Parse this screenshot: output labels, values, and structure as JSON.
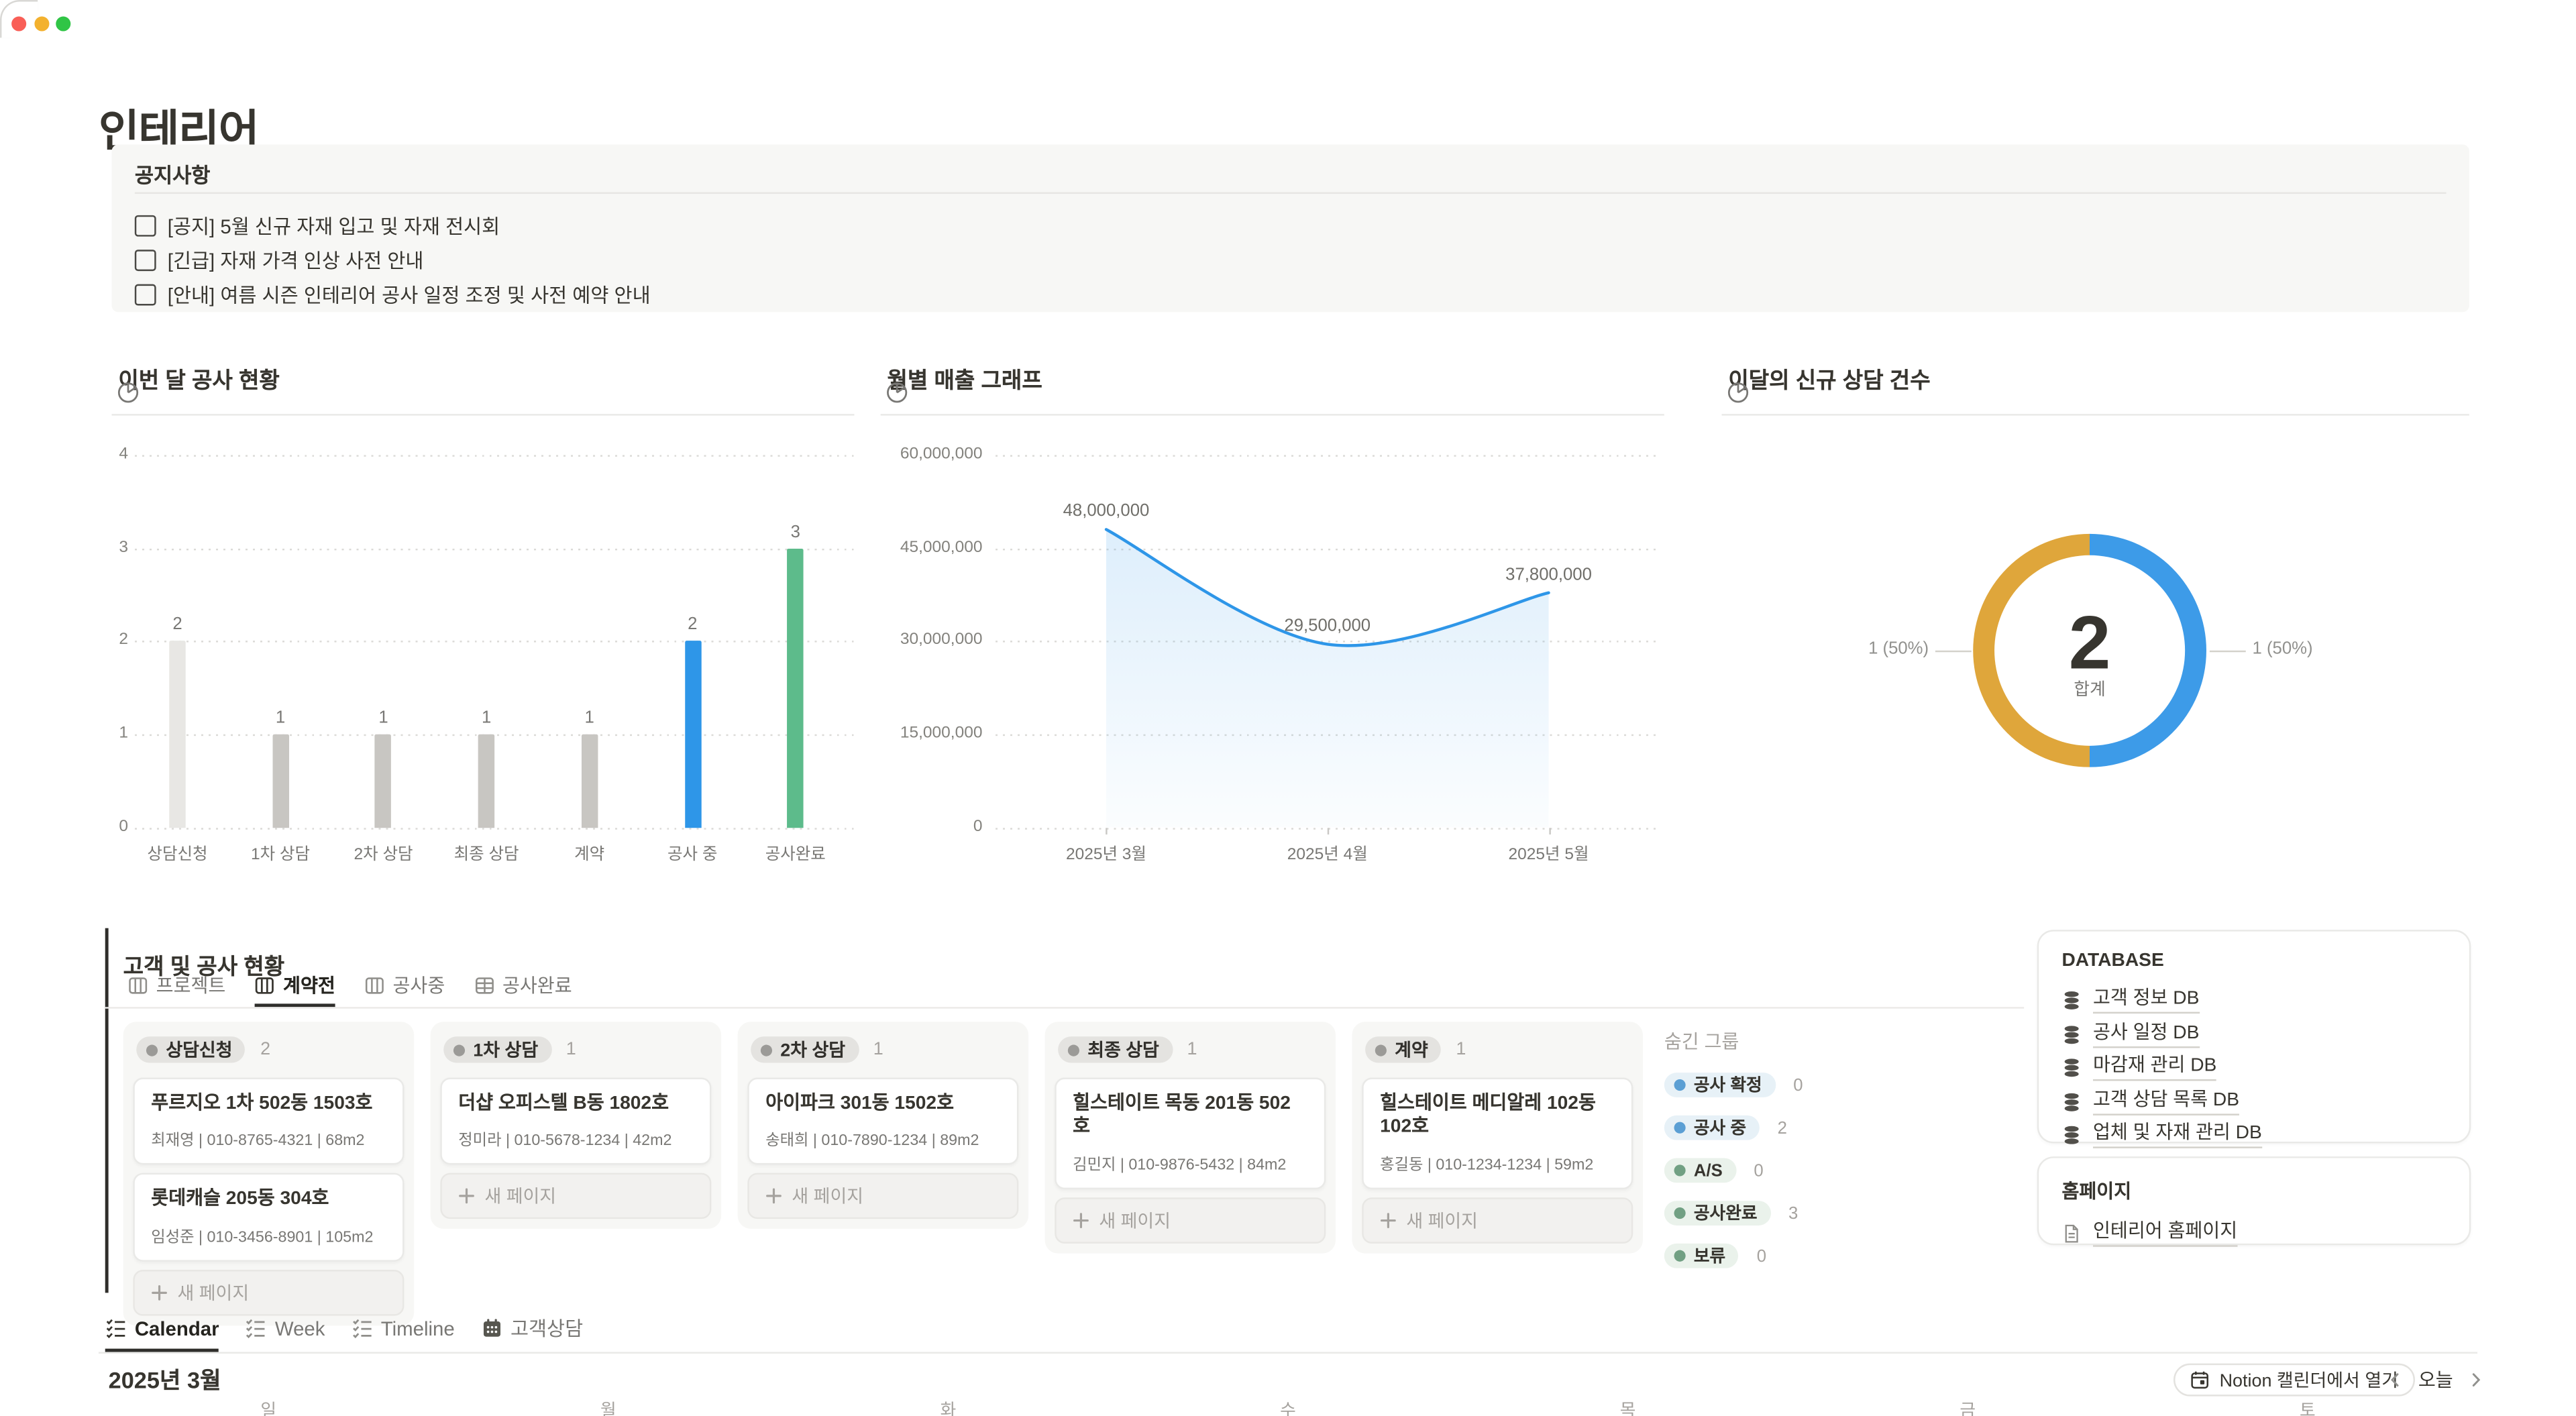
{
  "window": {
    "controls": [
      "close",
      "minimize",
      "zoom"
    ]
  },
  "page": {
    "title": "인테리어"
  },
  "notice": {
    "title": "공지사항",
    "items": [
      {
        "label": "[공지] 5월 신규 자재 입고 및 자재 전시회",
        "checked": false
      },
      {
        "label": "[긴급] 자재 가격 인상 사전 안내",
        "checked": false
      },
      {
        "label": "[안내] 여름 시즌 인테리어 공사 일정 조정 및 사전 예약 안내",
        "checked": false
      }
    ]
  },
  "chart_data": [
    {
      "id": "construction-status",
      "type": "bar",
      "title": "이번 달 공사 현황",
      "categories": [
        "상담신청",
        "1차 상담",
        "2차 상담",
        "최종 상담",
        "계약",
        "공사 중",
        "공사완료"
      ],
      "values": [
        2,
        1,
        1,
        1,
        1,
        2,
        3
      ],
      "bar_colors": [
        "#E8E7E4",
        "#C8C6C2",
        "#C8C6C2",
        "#C8C6C2",
        "#C8C6C2",
        "#2E96E8",
        "#5DBB8B"
      ],
      "ylim": [
        0,
        4
      ],
      "yticks": [
        4,
        3,
        2,
        1,
        0
      ],
      "grid": "dotted-horizontal",
      "legend": "none"
    },
    {
      "id": "monthly-revenue",
      "type": "line",
      "title": "월별 매출 그래프",
      "x": [
        "2025년 3월",
        "2025년 4월",
        "2025년 5월"
      ],
      "values": [
        48000000,
        29500000,
        37800000
      ],
      "point_labels": [
        "48,000,000",
        "29,500,000",
        "37,800,000"
      ],
      "ylim": [
        0,
        60000000
      ],
      "yticks": [
        60000000,
        45000000,
        30000000,
        15000000,
        0
      ],
      "ytick_labels": [
        "60,000,000",
        "45,000,000",
        "30,000,000",
        "15,000,000",
        "0"
      ],
      "line_color": "#2E96E8",
      "area_fill": true,
      "grid": "dotted-horizontal",
      "legend": "none"
    },
    {
      "id": "new-consultations",
      "type": "donut",
      "title": "이달의 신규 상담 건수",
      "total_value": "2",
      "total_label": "합계",
      "slices": [
        {
          "label": "1 (50%)",
          "value": 1,
          "color": "#DFA63B",
          "side": "left"
        },
        {
          "label": "1 (50%)",
          "value": 1,
          "color": "#3D9BE8",
          "side": "right"
        }
      ]
    }
  ],
  "kanban": {
    "title": "고객 및 공사 현황",
    "tabs": [
      {
        "label": "프로젝트",
        "icon": "board",
        "active": false
      },
      {
        "label": "계약전",
        "icon": "board",
        "active": true
      },
      {
        "label": "공사중",
        "icon": "board",
        "active": false
      },
      {
        "label": "공사완료",
        "icon": "table",
        "active": false
      }
    ],
    "new_page_label": "새 페이지",
    "columns": [
      {
        "name": "상담신청",
        "count": "2",
        "cards": [
          {
            "title": "푸르지오 1차 502동 1503호",
            "meta": "최재영 | 010-8765-4321 | 68m2"
          },
          {
            "title": "롯데캐슬 205동 304호",
            "meta": "임성준 | 010-3456-8901 | 105m2"
          }
        ]
      },
      {
        "name": "1차 상담",
        "count": "1",
        "cards": [
          {
            "title": "더샵 오피스텔 B동 1802호",
            "meta": "정미라 | 010-5678-1234 | 42m2"
          }
        ]
      },
      {
        "name": "2차 상담",
        "count": "1",
        "cards": [
          {
            "title": "아이파크 301동 1502호",
            "meta": "송태희 | 010-7890-1234 | 89m2"
          }
        ]
      },
      {
        "name": "최종 상담",
        "count": "1",
        "cards": [
          {
            "title": "힐스테이트 목동 201동 502호",
            "meta": "김민지 | 010-9876-5432 | 84m2"
          }
        ]
      },
      {
        "name": "계약",
        "count": "1",
        "cards": [
          {
            "title": "힐스테이트 메디알레 102동 102호",
            "meta": "홍길동 | 010-1234-1234 | 59m2"
          }
        ]
      }
    ],
    "hidden_groups": {
      "title": "숨긴 그룹",
      "items": [
        {
          "name": "공사 확정",
          "count": "0",
          "color": "blue"
        },
        {
          "name": "공사 중",
          "count": "2",
          "color": "blue"
        },
        {
          "name": "A/S",
          "count": "0",
          "color": "green"
        },
        {
          "name": "공사완료",
          "count": "3",
          "color": "green"
        },
        {
          "name": "보류",
          "count": "0",
          "color": "green"
        }
      ]
    }
  },
  "database_panel": {
    "title": "DATABASE",
    "items": [
      "고객 정보 DB",
      "공사 일정 DB",
      "마감재 관리 DB",
      "고객 상담 목록 DB",
      "업체 및 자재 관리 DB"
    ]
  },
  "homepage_panel": {
    "title": "홈페이지",
    "items": [
      "인테리어 홈페이지"
    ]
  },
  "calendar": {
    "tabs": [
      {
        "label": "Calendar",
        "icon": "checklist",
        "active": true
      },
      {
        "label": "Week",
        "icon": "checklist",
        "active": false
      },
      {
        "label": "Timeline",
        "icon": "checklist",
        "active": false
      },
      {
        "label": "고객상담",
        "icon": "calendar",
        "active": false
      }
    ],
    "month_label": "2025년 3월",
    "open_button_label": "Notion 캘린더에서 열기",
    "today_label": "오늘",
    "weekdays": [
      "일",
      "월",
      "화",
      "수",
      "목",
      "금",
      "토"
    ]
  },
  "colors": {
    "accent_blue": "#2E96E8",
    "accent_green": "#5DBB8B",
    "accent_yellow": "#DFA63B",
    "pill_blue_bg": "#E7F1F7",
    "pill_blue_dot": "#5B9FD4",
    "pill_green_bg": "#EAF2EB",
    "pill_green_dot": "#71A083"
  }
}
